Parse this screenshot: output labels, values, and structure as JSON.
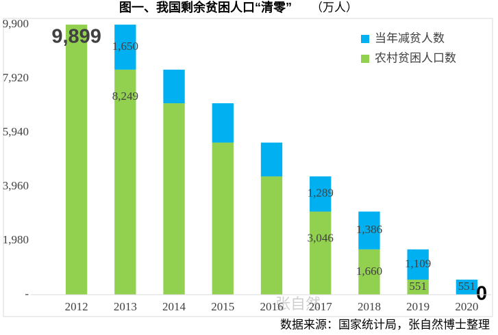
{
  "chart_data": {
    "type": "stacked-bar",
    "title": "图一、我国剩余贫困人口“清零”",
    "unit": "（万人）",
    "source": "数据来源：国家统计局，张自然博士整理",
    "watermark": "张自然",
    "categories": [
      "2012",
      "2013",
      "2014",
      "2015",
      "2016",
      "2017",
      "2018",
      "2019",
      "2020"
    ],
    "series": [
      {
        "name": "农村贫困人口数",
        "color": "#92d050",
        "values": [
          9899,
          8249,
          7017,
          5575,
          4335,
          3046,
          1660,
          551,
          0
        ],
        "value_labels": [
          "9,899",
          "8,249",
          null,
          null,
          null,
          "3,046",
          "1,660",
          "551",
          "0"
        ]
      },
      {
        "name": "当年减贫人数",
        "color": "#00b0f0",
        "values": [
          null,
          1650,
          1232,
          1442,
          1240,
          1289,
          1386,
          1109,
          551
        ],
        "value_labels": [
          null,
          "1,650",
          null,
          null,
          null,
          "1,289",
          "1,386",
          "1,109",
          "551"
        ]
      }
    ],
    "ylim": [
      0,
      9900
    ],
    "yticks": [
      {
        "value": 0,
        "label": "-"
      },
      {
        "value": 1980,
        "label": "1,980"
      },
      {
        "value": 3960,
        "label": "3,960"
      },
      {
        "value": 5940,
        "label": "5,940"
      },
      {
        "value": 7920,
        "label": "7,920"
      },
      {
        "value": 9900,
        "label": "9,900"
      }
    ],
    "legend": "top-right"
  }
}
